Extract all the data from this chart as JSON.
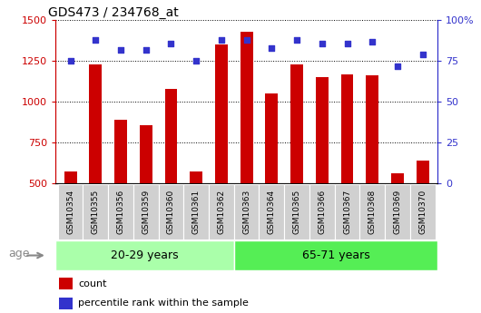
{
  "title": "GDS473 / 234768_at",
  "samples": [
    "GSM10354",
    "GSM10355",
    "GSM10356",
    "GSM10359",
    "GSM10360",
    "GSM10361",
    "GSM10362",
    "GSM10363",
    "GSM10364",
    "GSM10365",
    "GSM10366",
    "GSM10367",
    "GSM10368",
    "GSM10369",
    "GSM10370"
  ],
  "counts": [
    570,
    1230,
    890,
    855,
    1080,
    570,
    1350,
    1430,
    1050,
    1230,
    1150,
    1170,
    1165,
    560,
    640
  ],
  "percentiles": [
    75,
    88,
    82,
    82,
    86,
    75,
    88,
    88,
    83,
    88,
    86,
    86,
    87,
    72,
    79
  ],
  "group1_label": "20-29 years",
  "group2_label": "65-71 years",
  "group1_count": 7,
  "group2_count": 8,
  "bar_color": "#cc0000",
  "dot_color": "#3333cc",
  "group1_bg": "#aaffaa",
  "group2_bg": "#55ee55",
  "age_label": "age",
  "legend_count": "count",
  "legend_pct": "percentile rank within the sample",
  "ylim_left": [
    500,
    1500
  ],
  "ylim_right": [
    0,
    100
  ],
  "yticks_left": [
    500,
    750,
    1000,
    1250,
    1500
  ],
  "yticks_right": [
    0,
    25,
    50,
    75,
    100
  ],
  "left_color": "#cc0000",
  "right_color": "#3333cc",
  "tick_area_bg": "#d0d0d0",
  "bar_bottom": 500
}
